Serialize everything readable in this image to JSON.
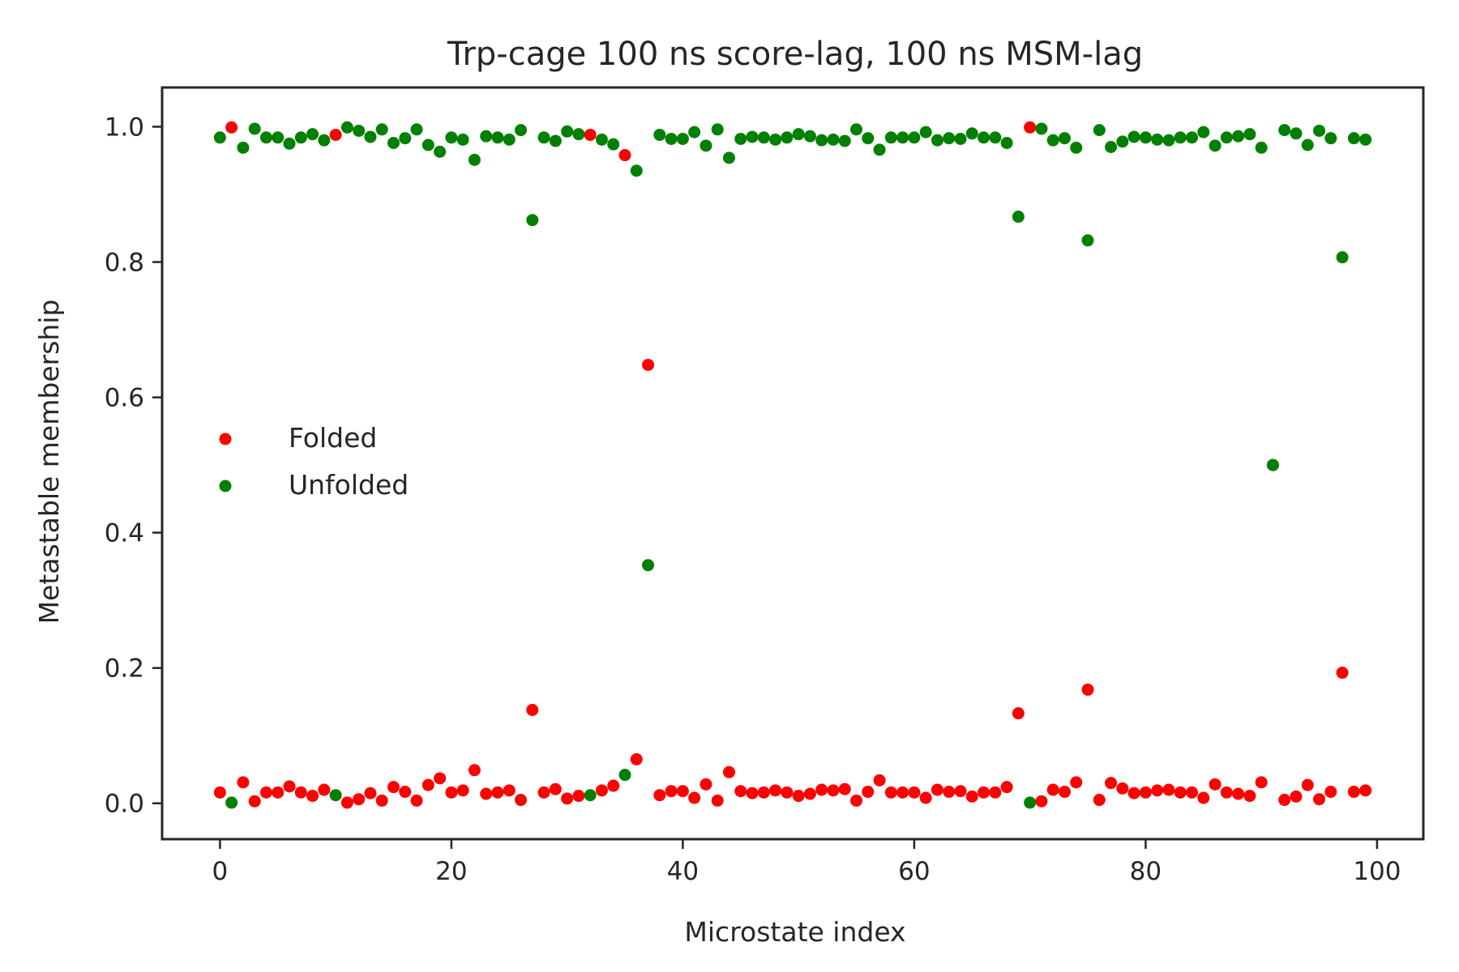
{
  "chart_data": {
    "type": "scatter",
    "title": "Trp-cage 100 ns score-lag, 100 ns MSM-lag",
    "xlabel": "Microstate index",
    "ylabel": "Metastable membership",
    "xlim": [
      -5,
      104
    ],
    "ylim": [
      -0.053,
      1.058
    ],
    "xticks": [
      0,
      20,
      40,
      60,
      80,
      100
    ],
    "yticks": [
      0.0,
      0.2,
      0.4,
      0.6,
      0.8,
      1.0
    ],
    "xtick_labels": [
      "0",
      "20",
      "40",
      "60",
      "80",
      "100"
    ],
    "ytick_labels": [
      "0.0",
      "0.2",
      "0.4",
      "0.6",
      "0.8",
      "1.0"
    ],
    "grid": false,
    "legend_position": "center-left",
    "x": [
      0,
      1,
      2,
      3,
      4,
      5,
      6,
      7,
      8,
      9,
      10,
      11,
      12,
      13,
      14,
      15,
      16,
      17,
      18,
      19,
      20,
      21,
      22,
      23,
      24,
      25,
      26,
      27,
      28,
      29,
      30,
      31,
      32,
      33,
      34,
      35,
      36,
      37,
      38,
      39,
      40,
      41,
      42,
      43,
      44,
      45,
      46,
      47,
      48,
      49,
      50,
      51,
      52,
      53,
      54,
      55,
      56,
      57,
      58,
      59,
      60,
      61,
      62,
      63,
      64,
      65,
      66,
      67,
      68,
      69,
      70,
      71,
      72,
      73,
      74,
      75,
      76,
      77,
      78,
      79,
      80,
      81,
      82,
      83,
      84,
      85,
      86,
      87,
      88,
      89,
      90,
      91,
      92,
      93,
      94,
      95,
      96,
      97,
      98,
      99
    ],
    "series": [
      {
        "name": "Folded",
        "color": "#ff0000",
        "values": [
          0.016,
          0.999,
          0.031,
          0.003,
          0.016,
          0.016,
          0.025,
          0.016,
          0.011,
          0.02,
          0.988,
          0.001,
          0.006,
          0.015,
          0.004,
          0.024,
          0.017,
          0.004,
          0.027,
          0.037,
          0.016,
          0.019,
          0.049,
          0.014,
          0.016,
          0.019,
          0.005,
          0.138,
          0.016,
          0.021,
          0.007,
          0.011,
          0.988,
          0.019,
          0.026,
          0.958,
          0.065,
          0.648,
          0.012,
          0.018,
          0.018,
          0.008,
          0.028,
          0.004,
          0.046,
          0.018,
          0.015,
          0.016,
          0.019,
          0.016,
          0.011,
          0.014,
          0.02,
          0.019,
          0.021,
          0.004,
          0.017,
          0.034,
          0.016,
          0.016,
          0.016,
          0.008,
          0.02,
          0.017,
          0.018,
          0.01,
          0.016,
          0.016,
          0.024,
          0.133,
          0.999,
          0.003,
          0.02,
          0.017,
          0.031,
          0.168,
          0.005,
          0.03,
          0.022,
          0.015,
          0.016,
          0.019,
          0.02,
          0.016,
          0.016,
          0.008,
          0.028,
          0.016,
          0.014,
          0.011,
          0.031,
          0.5,
          0.005,
          0.01,
          0.027,
          0.006,
          0.017,
          0.193,
          0.017,
          0.019
        ]
      },
      {
        "name": "Unfolded",
        "color": "#008000",
        "values": [
          0.984,
          0.001,
          0.969,
          0.997,
          0.984,
          0.984,
          0.975,
          0.984,
          0.989,
          0.98,
          0.012,
          0.999,
          0.994,
          0.985,
          0.996,
          0.976,
          0.983,
          0.996,
          0.973,
          0.963,
          0.984,
          0.981,
          0.951,
          0.986,
          0.984,
          0.981,
          0.995,
          0.862,
          0.984,
          0.979,
          0.993,
          0.989,
          0.012,
          0.981,
          0.974,
          0.042,
          0.935,
          0.352,
          0.988,
          0.982,
          0.982,
          0.992,
          0.972,
          0.996,
          0.954,
          0.982,
          0.985,
          0.984,
          0.981,
          0.984,
          0.989,
          0.986,
          0.98,
          0.981,
          0.979,
          0.996,
          0.983,
          0.966,
          0.984,
          0.984,
          0.984,
          0.992,
          0.98,
          0.983,
          0.982,
          0.99,
          0.984,
          0.984,
          0.976,
          0.867,
          0.001,
          0.997,
          0.98,
          0.983,
          0.969,
          0.832,
          0.995,
          0.97,
          0.978,
          0.985,
          0.984,
          0.981,
          0.98,
          0.984,
          0.984,
          0.992,
          0.972,
          0.984,
          0.986,
          0.989,
          0.969,
          0.5,
          0.995,
          0.99,
          0.973,
          0.994,
          0.983,
          0.807,
          0.983,
          0.981
        ]
      }
    ]
  }
}
